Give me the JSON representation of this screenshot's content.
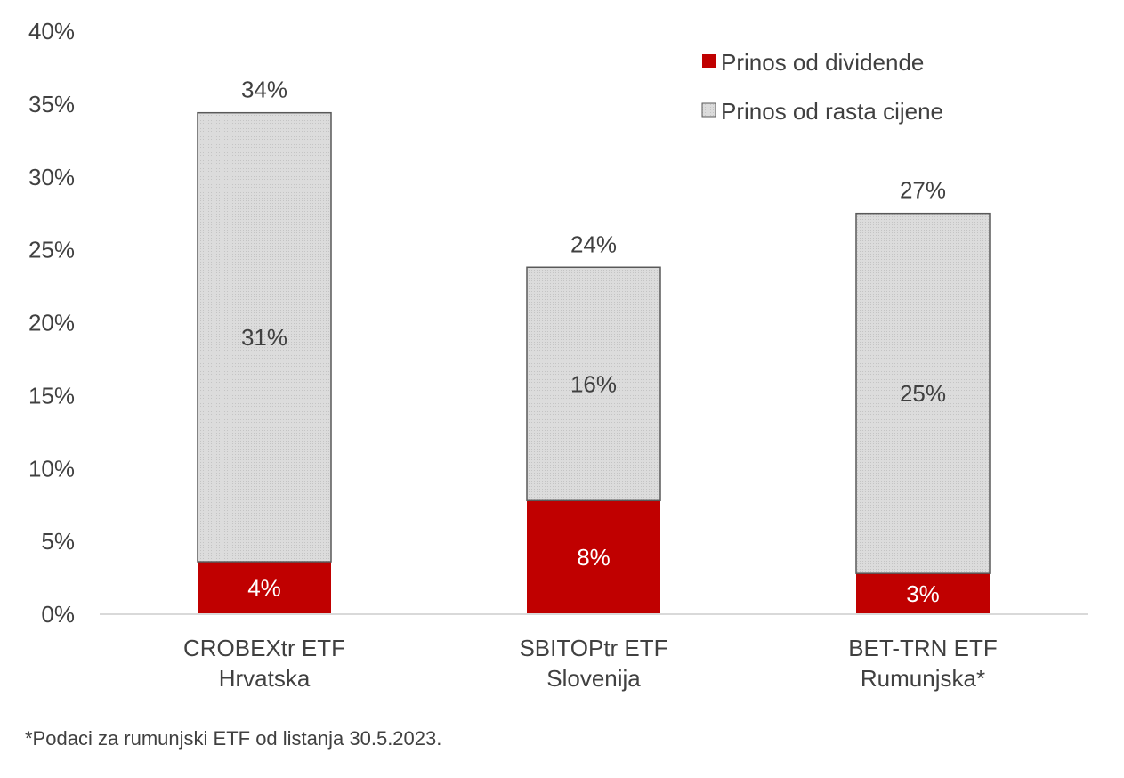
{
  "chart_data": {
    "type": "bar",
    "stacked": true,
    "categories": [
      [
        "CROBEXtr ETF",
        "Hrvatska"
      ],
      [
        "SBITOPtr ETF",
        "Slovenija"
      ],
      [
        "BET-TRN ETF",
        "Rumunjska*"
      ]
    ],
    "series": [
      {
        "name": "Prinos od dividende",
        "values": [
          3.6,
          7.8,
          2.8
        ],
        "labels": [
          "4%",
          "8%",
          "3%"
        ],
        "color": "#c00000",
        "label_color": "#ffffff"
      },
      {
        "name": "Prinos od rasta cijene",
        "values": [
          30.8,
          16.0,
          24.7
        ],
        "labels": [
          "31%",
          "16%",
          "25%"
        ],
        "color": "#d9d9d9",
        "label_color": "#404040"
      }
    ],
    "totals": [
      34.4,
      23.8,
      27.5
    ],
    "total_labels": [
      "34%",
      "24%",
      "27%"
    ],
    "ylim": [
      0,
      40
    ],
    "yticks": [
      "0%",
      "5%",
      "10%",
      "15%",
      "20%",
      "25%",
      "30%",
      "35%",
      "40%"
    ],
    "legend_position": "top-right",
    "grid": false,
    "footnote": "*Podaci za rumunjski  ETF od listanja 30.5.2023."
  }
}
